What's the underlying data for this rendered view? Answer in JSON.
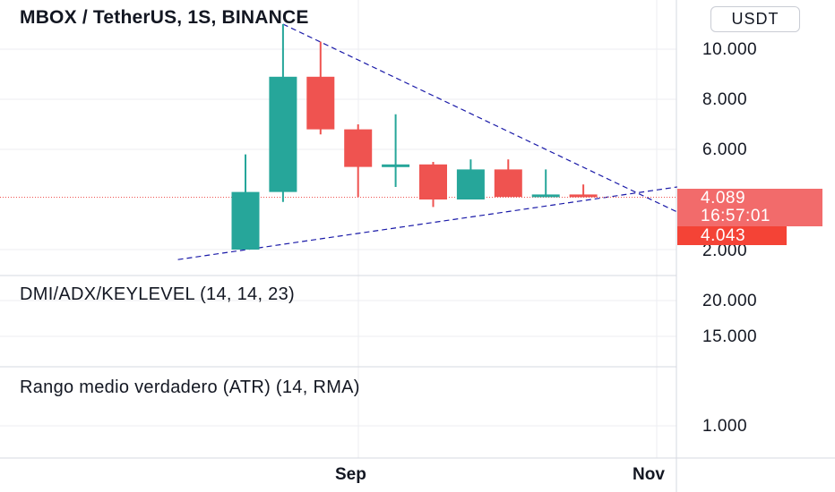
{
  "header": {
    "title": "MBOX / TetherUS, 1S, BINANCE",
    "currency_button": "USDT"
  },
  "panes": {
    "dmi_title": "DMI/ADX/KEYLEVEL (14, 14, 23)",
    "atr_title": "Rango medio verdadero (ATR) (14, RMA)"
  },
  "price_axis": {
    "ticks": [
      "10.000",
      "8.000",
      "6.000",
      "2.000"
    ],
    "last_price": "4.089",
    "countdown": "16:57:01",
    "secondary_price": "4.043"
  },
  "dmi_axis": {
    "ticks": [
      "20.000",
      "15.000"
    ]
  },
  "atr_axis": {
    "ticks": [
      "1.000"
    ]
  },
  "time_axis": {
    "labels": [
      "Sep",
      "Nov"
    ]
  },
  "colors": {
    "up": "#26a69a",
    "down": "#ef5350",
    "trendline": "#1a1aa8",
    "grid": "#eceef2"
  },
  "chart_data": {
    "type": "candlestick",
    "ylim": [
      1.6,
      11.1
    ],
    "last_price": 4.089,
    "candles": [
      {
        "open": 2.0,
        "high": 5.8,
        "low": 2.0,
        "close": 4.3
      },
      {
        "open": 4.3,
        "high": 11.0,
        "low": 3.9,
        "close": 8.9
      },
      {
        "open": 8.9,
        "high": 10.3,
        "low": 6.6,
        "close": 6.8
      },
      {
        "open": 6.8,
        "high": 7.0,
        "low": 4.1,
        "close": 5.3
      },
      {
        "open": 5.3,
        "high": 7.4,
        "low": 4.5,
        "close": 5.4
      },
      {
        "open": 5.4,
        "high": 5.5,
        "low": 3.7,
        "close": 4.0
      },
      {
        "open": 4.0,
        "high": 5.6,
        "low": 4.0,
        "close": 5.2
      },
      {
        "open": 5.2,
        "high": 5.6,
        "low": 4.1,
        "close": 4.1
      },
      {
        "open": 4.1,
        "high": 5.2,
        "low": 4.1,
        "close": 4.2
      },
      {
        "open": 4.2,
        "high": 4.6,
        "low": 4.1,
        "close": 4.1
      }
    ],
    "trendlines": [
      {
        "from": {
          "candle": 1.0,
          "price": 11.0
        },
        "to": {
          "candle": 11.5,
          "price": 3.5
        }
      },
      {
        "from": {
          "candle": -1.8,
          "price": 1.6
        },
        "to": {
          "candle": 11.5,
          "price": 4.5
        }
      }
    ]
  }
}
